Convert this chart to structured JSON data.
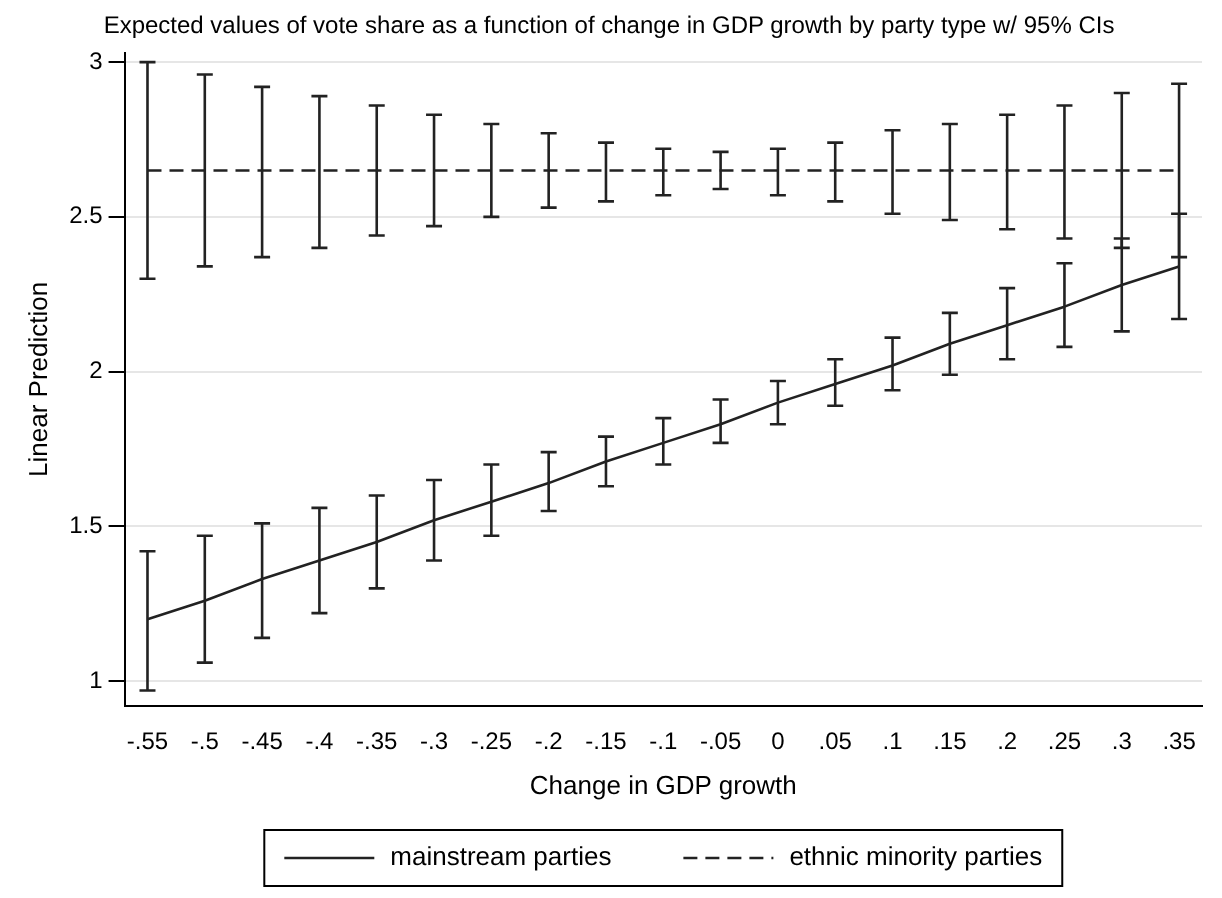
{
  "chart_data": {
    "type": "line",
    "title": "Expected values of vote share as a function of change in GDP growth by party type w/ 95% CIs",
    "xlabel": "Change in GDP growth",
    "ylabel": "Linear Prediction",
    "x": [
      -0.55,
      -0.5,
      -0.45,
      -0.4,
      -0.35,
      -0.3,
      -0.25,
      -0.2,
      -0.15,
      -0.1,
      -0.05,
      0,
      0.05,
      0.1,
      0.15,
      0.2,
      0.25,
      0.3,
      0.35
    ],
    "series": [
      {
        "name": "mainstream parties",
        "color": "#222222",
        "line_style": "solid",
        "values": [
          1.2,
          1.26,
          1.33,
          1.39,
          1.45,
          1.52,
          1.58,
          1.64,
          1.71,
          1.77,
          1.83,
          1.9,
          1.96,
          2.02,
          2.09,
          2.15,
          2.21,
          2.28,
          2.34
        ],
        "errors": [
          [
            0.97,
            1.42
          ],
          [
            1.06,
            1.47
          ],
          [
            1.14,
            1.51
          ],
          [
            1.22,
            1.56
          ],
          [
            1.3,
            1.6
          ],
          [
            1.39,
            1.65
          ],
          [
            1.47,
            1.7
          ],
          [
            1.55,
            1.74
          ],
          [
            1.63,
            1.79
          ],
          [
            1.7,
            1.85
          ],
          [
            1.77,
            1.91
          ],
          [
            1.83,
            1.97
          ],
          [
            1.89,
            2.04
          ],
          [
            1.94,
            2.11
          ],
          [
            1.99,
            2.19
          ],
          [
            2.04,
            2.27
          ],
          [
            2.08,
            2.35
          ],
          [
            2.13,
            2.43
          ],
          [
            2.17,
            2.51
          ]
        ]
      },
      {
        "name": "ethnic minority parties",
        "color": "#222222",
        "line_style": "dashed",
        "values": [
          2.65,
          2.65,
          2.65,
          2.65,
          2.65,
          2.65,
          2.65,
          2.65,
          2.65,
          2.65,
          2.65,
          2.65,
          2.65,
          2.65,
          2.65,
          2.65,
          2.65,
          2.65,
          2.65
        ],
        "errors": [
          [
            2.3,
            3.0
          ],
          [
            2.34,
            2.96
          ],
          [
            2.37,
            2.92
          ],
          [
            2.4,
            2.89
          ],
          [
            2.44,
            2.86
          ],
          [
            2.47,
            2.83
          ],
          [
            2.5,
            2.8
          ],
          [
            2.53,
            2.77
          ],
          [
            2.55,
            2.74
          ],
          [
            2.57,
            2.72
          ],
          [
            2.59,
            2.71
          ],
          [
            2.57,
            2.72
          ],
          [
            2.55,
            2.74
          ],
          [
            2.51,
            2.78
          ],
          [
            2.49,
            2.8
          ],
          [
            2.46,
            2.83
          ],
          [
            2.43,
            2.86
          ],
          [
            2.4,
            2.9
          ],
          [
            2.37,
            2.93
          ]
        ]
      }
    ],
    "xlim": [
      -0.57,
      0.37
    ],
    "xticks": [
      {
        "value": -0.55,
        "label": "-.55"
      },
      {
        "value": -0.5,
        "label": "-.5"
      },
      {
        "value": -0.45,
        "label": "-.45"
      },
      {
        "value": -0.4,
        "label": "-.4"
      },
      {
        "value": -0.35,
        "label": "-.35"
      },
      {
        "value": -0.3,
        "label": "-.3"
      },
      {
        "value": -0.25,
        "label": "-.25"
      },
      {
        "value": -0.2,
        "label": "-.2"
      },
      {
        "value": -0.15,
        "label": "-.15"
      },
      {
        "value": -0.1,
        "label": "-.1"
      },
      {
        "value": -0.05,
        "label": "-.05"
      },
      {
        "value": 0,
        "label": "0"
      },
      {
        "value": 0.05,
        "label": ".05"
      },
      {
        "value": 0.1,
        "label": ".1"
      },
      {
        "value": 0.15,
        "label": ".15"
      },
      {
        "value": 0.2,
        "label": ".2"
      },
      {
        "value": 0.25,
        "label": ".25"
      },
      {
        "value": 0.3,
        "label": ".3"
      },
      {
        "value": 0.35,
        "label": ".35"
      }
    ],
    "ylim": [
      0.92,
      3.03
    ],
    "yticks": [
      1,
      1.5,
      2,
      2.5,
      3
    ],
    "grid": "y",
    "legend": "bottom",
    "marker": "none"
  }
}
